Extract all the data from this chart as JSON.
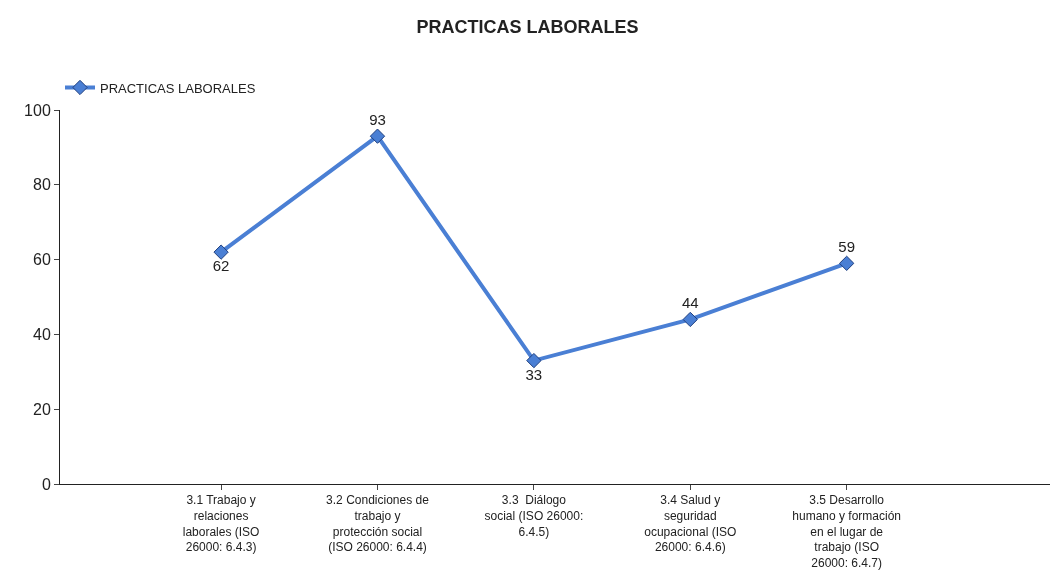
{
  "chart_data": {
    "type": "line",
    "title": "PRACTICAS LABORALES",
    "categories": [
      "3.1 Trabajo y relaciones laborales (ISO 26000: 6.4.3)",
      "3.2 Condiciones de trabajo y protección social (ISO 26000: 6.4.4)",
      "3.3  Diálogo social (ISO 26000: 6.4.5)",
      "3.4 Salud y seguridad ocupacional (ISO 26000: 6.4.6)",
      "3.5 Desarrollo humano y formación en el lugar de trabajo (ISO 26000: 6.4.7)"
    ],
    "series": [
      {
        "name": "PRACTICAS LABORALES",
        "color": "#4a7fd4",
        "values": [
          62,
          93,
          33,
          44,
          59
        ]
      }
    ],
    "ylim": [
      0,
      100
    ],
    "yticks": [
      0,
      20,
      40,
      60,
      80,
      100
    ],
    "grid": false,
    "legend": "top left",
    "marker": "diamond",
    "line_style": "solid",
    "data_labels": true
  }
}
